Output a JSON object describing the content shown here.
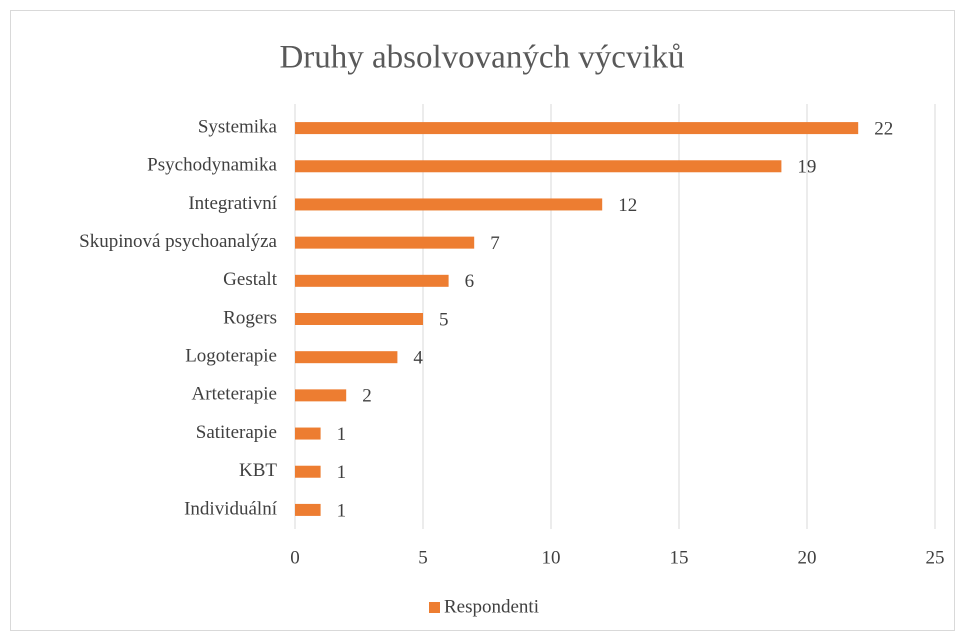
{
  "chart_data": {
    "type": "bar",
    "orientation": "horizontal",
    "title": "Druhy absolvovaných výcviků",
    "categories": [
      "Systemika",
      "Psychodynamika",
      "Integrativní",
      "Skupinová psychoanalýza",
      "Gestalt",
      "Rogers",
      "Logoterapie",
      "Arteterapie",
      "Satiterapie",
      "KBT",
      "Individuální"
    ],
    "series": [
      {
        "name": "Respondenti",
        "color": "#ed7d31",
        "values": [
          22,
          19,
          12,
          7,
          6,
          5,
          4,
          2,
          1,
          1,
          1
        ]
      }
    ],
    "xlim": [
      0,
      25
    ],
    "xticks": [
      0,
      5,
      10,
      15,
      20,
      25
    ],
    "grid": true,
    "legend": "bottom"
  }
}
